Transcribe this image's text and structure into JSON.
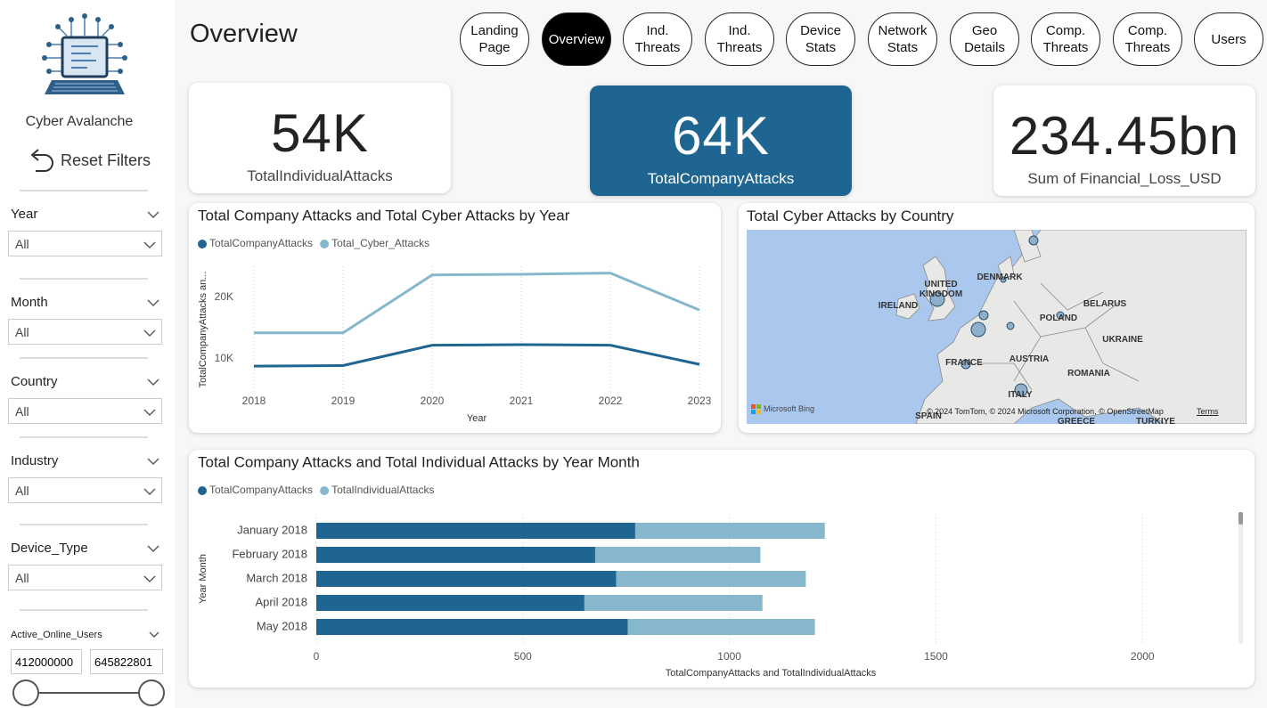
{
  "sidebar": {
    "brand": "Cyber Avalanche",
    "reset": "Reset Filters",
    "filters": [
      {
        "label": "Year",
        "value": "All"
      },
      {
        "label": "Month",
        "value": "All"
      },
      {
        "label": "Country",
        "value": "All"
      },
      {
        "label": "Industry",
        "value": "All"
      },
      {
        "label": "Device_Type",
        "value": "All"
      }
    ],
    "range_filter": {
      "label": "Active_Online_Users",
      "min": "412000000",
      "max": "645822801"
    }
  },
  "header": {
    "title": "Overview",
    "nav": [
      {
        "label": "Landing Page",
        "active": false
      },
      {
        "label": "Overview",
        "active": true
      },
      {
        "label": "Ind. Threats",
        "active": false
      },
      {
        "label": "Ind. Threats",
        "active": false
      },
      {
        "label": "Device Stats",
        "active": false
      },
      {
        "label": "Network Stats",
        "active": false
      },
      {
        "label": "Geo Details",
        "active": false
      },
      {
        "label": "Comp. Threats",
        "active": false
      },
      {
        "label": "Comp. Threats",
        "active": false
      },
      {
        "label": "Users",
        "active": false
      }
    ]
  },
  "cards": [
    {
      "value": "54K",
      "label": "TotalIndividualAttacks",
      "highlight": false
    },
    {
      "value": "64K",
      "label": "TotalCompanyAttacks",
      "highlight": true
    },
    {
      "value": "234.45bn",
      "label": "Sum of Financial_Loss_USD",
      "highlight": false
    }
  ],
  "map": {
    "title": "Total Cyber Attacks by Country",
    "labels": [
      "UNITED KINGDOM",
      "IRELAND",
      "DENMARK",
      "POLAND",
      "BELARUS",
      "UKRAINE",
      "FRANCE",
      "AUSTRIA",
      "ROMANIA",
      "ITALY",
      "SPAIN",
      "GREECE",
      "TURKIYE"
    ],
    "logo": "Microsoft Bing",
    "attribution": "© 2024 TomTom, © 2024 Microsoft Corporation, © OpenStreetMap",
    "terms": "Terms"
  },
  "chart_data": [
    {
      "type": "line",
      "title": "Total Company Attacks and Total Cyber Attacks by Year",
      "categories": [
        "2018",
        "2019",
        "2020",
        "2021",
        "2022",
        "2023"
      ],
      "series": [
        {
          "name": "TotalCompanyAttacks",
          "color": "#1f6591",
          "values": [
            8800,
            8900,
            12200,
            12300,
            12200,
            9100
          ]
        },
        {
          "name": "Total_Cyber_Attacks",
          "color": "#86b7cc",
          "values": [
            14200,
            14200,
            23600,
            23700,
            23900,
            17900
          ]
        }
      ],
      "ylim": [
        5000,
        25000
      ],
      "yticks": [
        {
          "value": 10000,
          "label": "10K"
        },
        {
          "value": 20000,
          "label": "20K"
        }
      ],
      "x_label": "Year",
      "y_label": "TotalCompanyAttacks an..."
    },
    {
      "type": "bar",
      "orientation": "horizontal",
      "stacked": true,
      "title": "Total Company Attacks and Total Individual Attacks by Year Month",
      "categories": [
        "January 2018",
        "February 2018",
        "March 2018",
        "April 2018",
        "May 2018"
      ],
      "series": [
        {
          "name": "TotalCompanyAttacks",
          "color": "#1f6591",
          "values": [
            772,
            675,
            726,
            649,
            754
          ]
        },
        {
          "name": "TotalIndividualAttacks",
          "color": "#86b7cc",
          "values": [
            459,
            400,
            459,
            431,
            453
          ]
        }
      ],
      "xlim": [
        0,
        2200
      ],
      "xticks": [
        0,
        500,
        1000,
        1500,
        2000
      ],
      "grid": true,
      "x_label": "TotalCompanyAttacks and TotalIndividualAttacks",
      "y_label": "Year Month"
    }
  ]
}
